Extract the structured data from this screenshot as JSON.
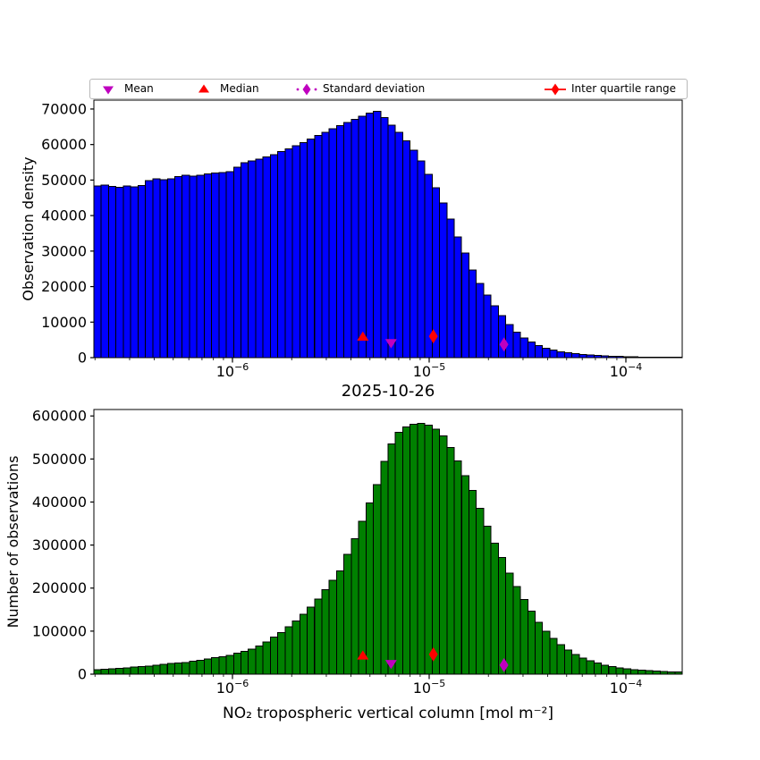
{
  "colors": {
    "bar_blue": "#0000FF",
    "bar_green": "#008000",
    "marker_red": "#FF0000",
    "marker_magenta": "#BF00BF",
    "edge_black": "#000000",
    "legend_border": "#B8B8B8",
    "background": "#FFFFFF"
  },
  "legend": {
    "items": [
      {
        "label": "Mean",
        "marker": "triangle-down",
        "color": "#BF00BF",
        "line": "none"
      },
      {
        "label": "Median",
        "marker": "triangle-up",
        "color": "#FF0000",
        "line": "none"
      },
      {
        "label": "Standard deviation",
        "marker": "diamond",
        "color": "#BF00BF",
        "line": "dotted"
      },
      {
        "label": "Inter quartile range",
        "marker": "diamond",
        "color": "#FF0000",
        "line": "solid"
      }
    ]
  },
  "chart_data": [
    {
      "type": "bar",
      "name": "observation-density-histogram",
      "title": "",
      "xlabel": "2025-10-26",
      "ylabel": "Observation density",
      "xscale": "log",
      "xlim": [
        2e-07,
        0.0002
      ],
      "ylim": [
        0,
        72500
      ],
      "grid": false,
      "legend_position": "top-outside",
      "bar_color": "#0000FF",
      "edge_color": "#000000",
      "yticks": [
        0,
        10000,
        20000,
        30000,
        40000,
        50000,
        60000,
        70000
      ],
      "xticks": [
        {
          "value": 1e-06,
          "base": "10",
          "exp": "−6"
        },
        {
          "value": 1e-05,
          "base": "10",
          "exp": "−5"
        },
        {
          "value": 0.0001,
          "base": "10",
          "exp": "−4"
        }
      ],
      "bins": {
        "start": 2e-07,
        "end": 0.0002,
        "count": 80,
        "spacing": "log"
      },
      "values": [
        48300,
        48600,
        48200,
        48000,
        48300,
        48100,
        48500,
        49900,
        50400,
        50100,
        50300,
        51000,
        51300,
        51100,
        51400,
        51700,
        52000,
        52100,
        52400,
        53600,
        54900,
        55400,
        55900,
        56500,
        57200,
        58000,
        58800,
        59700,
        60600,
        61500,
        62600,
        63500,
        64400,
        65300,
        66200,
        67100,
        68000,
        68800,
        69300,
        67600,
        65500,
        63400,
        61000,
        58400,
        55400,
        51600,
        47800,
        43600,
        39000,
        34000,
        29400,
        24700,
        20900,
        17600,
        14600,
        11800,
        9300,
        7200,
        5600,
        4400,
        3400,
        2700,
        2100,
        1700,
        1350,
        1080,
        870,
        700,
        570,
        470,
        390,
        320,
        270,
        220,
        185,
        155,
        130,
        110,
        95,
        80
      ],
      "markers": [
        {
          "name": "median",
          "shape": "triangle-up",
          "color": "#FF0000",
          "x": 4.6e-06,
          "y": 6000
        },
        {
          "name": "mean",
          "shape": "triangle-down",
          "color": "#BF00BF",
          "x": 6.4e-06,
          "y": 4000
        },
        {
          "name": "iqr",
          "shape": "diamond",
          "color": "#FF0000",
          "x": 1.05e-05,
          "y": 6000
        },
        {
          "name": "std",
          "shape": "diamond",
          "color": "#BF00BF",
          "x": 2.4e-05,
          "y": 3700
        }
      ]
    },
    {
      "type": "bar",
      "name": "number-of-observations-histogram",
      "title": "",
      "xlabel": "NO₂ tropospheric vertical column [mol m⁻²]",
      "ylabel": "Number of observations",
      "xscale": "log",
      "xlim": [
        2e-07,
        0.0002
      ],
      "ylim": [
        0,
        615000
      ],
      "grid": false,
      "bar_color": "#008000",
      "edge_color": "#000000",
      "yticks": [
        0,
        100000,
        200000,
        300000,
        400000,
        500000,
        600000
      ],
      "xticks": [
        {
          "value": 1e-06,
          "base": "10",
          "exp": "−6"
        },
        {
          "value": 1e-05,
          "base": "10",
          "exp": "−5"
        },
        {
          "value": 0.0001,
          "base": "10",
          "exp": "−4"
        }
      ],
      "bins": {
        "start": 2e-07,
        "end": 0.0002,
        "count": 80,
        "spacing": "log"
      },
      "values": [
        10300,
        11300,
        12400,
        13600,
        15000,
        16200,
        17600,
        19200,
        21000,
        22800,
        24500,
        26000,
        27500,
        29800,
        32300,
        35000,
        38000,
        41000,
        44000,
        48500,
        53000,
        58500,
        65000,
        74500,
        86000,
        97000,
        110000,
        124000,
        139000,
        156000,
        175000,
        196000,
        218000,
        240000,
        278000,
        315000,
        355000,
        398000,
        440000,
        495000,
        535000,
        562000,
        575000,
        581000,
        583000,
        579000,
        569000,
        554000,
        527000,
        496000,
        461000,
        427000,
        385000,
        344000,
        304000,
        271000,
        235000,
        204000,
        173000,
        146000,
        121000,
        100000,
        83000,
        69000,
        56000,
        46000,
        37500,
        31000,
        25500,
        21000,
        17500,
        14800,
        12500,
        10700,
        9200,
        8000,
        7000,
        6300,
        5700,
        5200
      ],
      "markers": [
        {
          "name": "median",
          "shape": "triangle-up",
          "color": "#FF0000",
          "x": 4.6e-06,
          "y": 44000
        },
        {
          "name": "mean",
          "shape": "triangle-down",
          "color": "#BF00BF",
          "x": 6.4e-06,
          "y": 23000
        },
        {
          "name": "iqr",
          "shape": "diamond",
          "color": "#FF0000",
          "x": 1.05e-05,
          "y": 46000
        },
        {
          "name": "std",
          "shape": "diamond",
          "color": "#BF00BF",
          "x": 2.4e-05,
          "y": 21000
        }
      ]
    }
  ]
}
